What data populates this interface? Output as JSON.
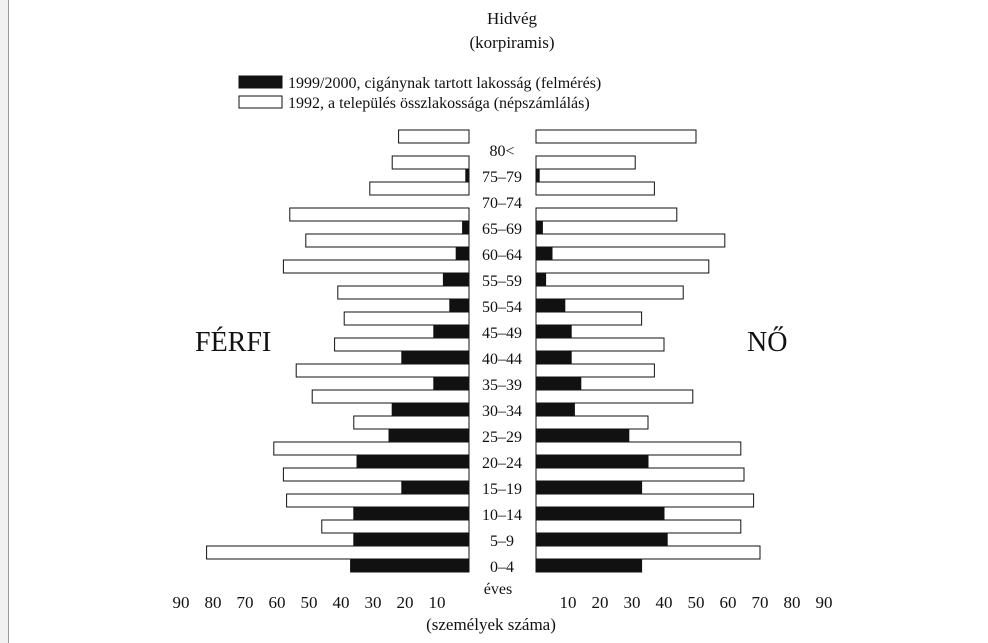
{
  "chart_data": {
    "type": "bar",
    "title": "Hidvég",
    "subtitle": "(korpiramis)",
    "xlabel": "(személyek száma)",
    "ylabel": "éves",
    "left_side_label": "FÉRFI",
    "right_side_label": "NŐ",
    "xlim": [
      0,
      90
    ],
    "x_ticks": [
      "90",
      "80",
      "70",
      "60",
      "50",
      "40",
      "30",
      "20",
      "10",
      "10",
      "20",
      "30",
      "40",
      "50",
      "60",
      "70",
      "80",
      "90"
    ],
    "legend_placement": "top",
    "categories": [
      "80<",
      "75–79",
      "70–74",
      "65–69",
      "60–64",
      "55–59",
      "50–54",
      "45–49",
      "40–44",
      "35–39",
      "30–34",
      "25–29",
      "20–24",
      "15–19",
      "10–14",
      "5–9",
      "0–4"
    ],
    "series": [
      {
        "name": "1999/2000, cigánynak tartott lakosság (felmérés)",
        "color": "#111111",
        "male": [
          0,
          1,
          0,
          2,
          4,
          8,
          6,
          11,
          21,
          11,
          24,
          25,
          35,
          21,
          36,
          36,
          37
        ],
        "female": [
          0,
          1,
          0,
          2,
          5,
          3,
          9,
          11,
          11,
          14,
          12,
          29,
          35,
          33,
          40,
          41,
          33
        ]
      },
      {
        "name": "1992, a település összlakossága (népszámlálás)",
        "color": "#ffffff",
        "male": [
          22,
          24,
          31,
          56,
          51,
          58,
          41,
          39,
          42,
          54,
          49,
          36,
          61,
          58,
          57,
          46,
          82
        ],
        "female": [
          50,
          31,
          37,
          44,
          59,
          54,
          46,
          33,
          40,
          37,
          49,
          35,
          64,
          65,
          68,
          64,
          70
        ]
      }
    ]
  }
}
